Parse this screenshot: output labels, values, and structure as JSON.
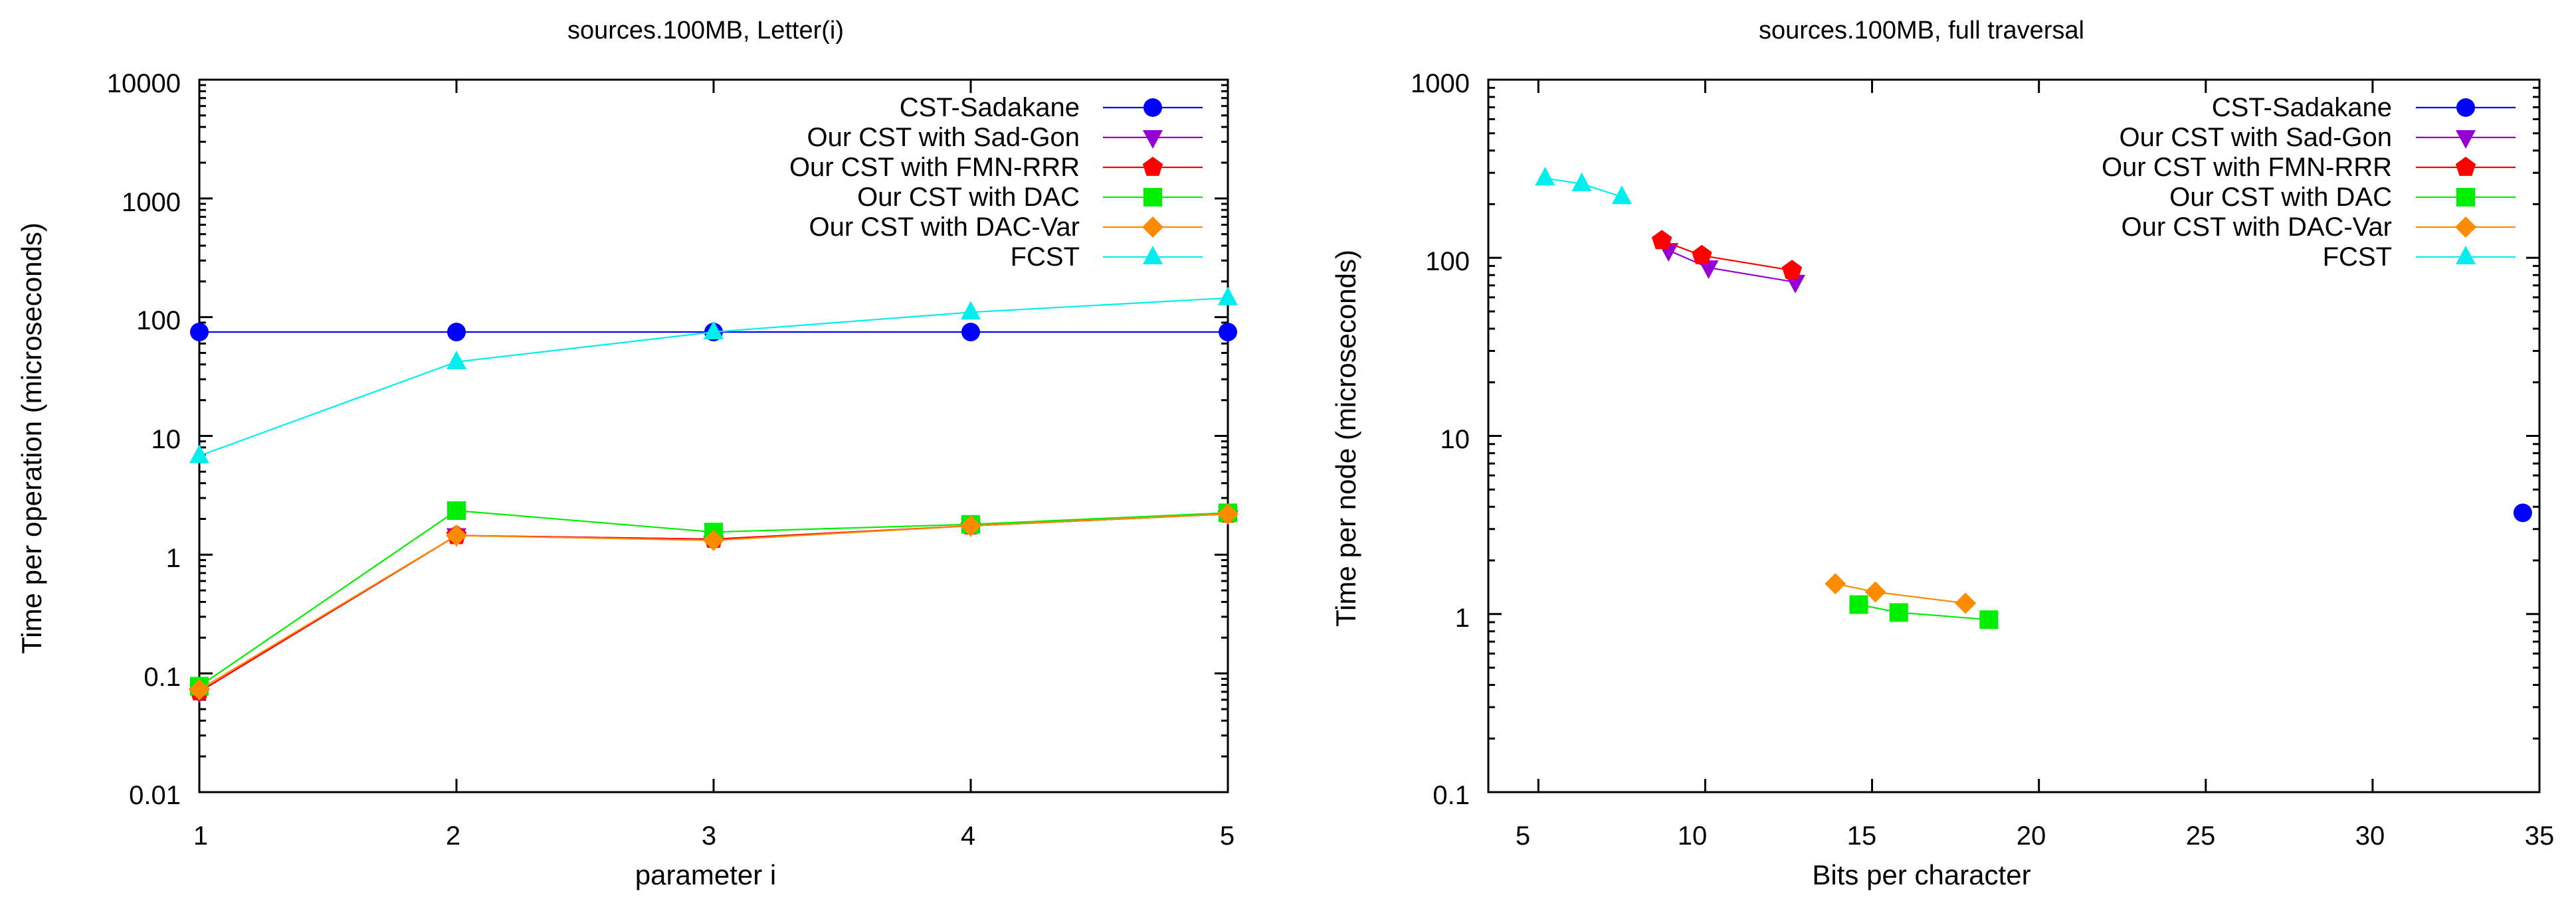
{
  "chart_data": [
    {
      "type": "line",
      "title": "sources.100MB, Letter(i)",
      "xlabel": "parameter i",
      "ylabel": "Time per operation (microseconds)",
      "xscale": "linear",
      "yscale": "log",
      "xlim": [
        1,
        5
      ],
      "ylim": [
        0.01,
        10000
      ],
      "xticks": [
        "1",
        "2",
        "3",
        "4",
        "5"
      ],
      "yticks": [
        "0.01",
        "0.1",
        "1",
        "10",
        "100",
        "1000",
        "10000"
      ],
      "legend_position": "top-right",
      "series": [
        {
          "name": "CST-Sadakane",
          "color": "#0000ff",
          "marker": "circle",
          "x": [
            1,
            2,
            3,
            4,
            5
          ],
          "y": [
            75,
            75,
            75,
            75,
            75
          ]
        },
        {
          "name": "Our CST with Sad-Gon",
          "color": "#9400d3",
          "marker": "triangle-down",
          "x": [
            1,
            2,
            3,
            4,
            5
          ],
          "y": [
            0.07,
            1.45,
            1.35,
            1.75,
            2.2
          ]
        },
        {
          "name": "Our CST with FMN-RRR",
          "color": "#ff0000",
          "marker": "pentagon",
          "x": [
            1,
            2,
            3,
            4,
            5
          ],
          "y": [
            0.07,
            1.45,
            1.35,
            1.75,
            2.2
          ]
        },
        {
          "name": "Our CST with DAC",
          "color": "#00ee00",
          "marker": "square",
          "x": [
            1,
            2,
            3,
            4,
            5
          ],
          "y": [
            0.078,
            2.35,
            1.55,
            1.8,
            2.25
          ]
        },
        {
          "name": "Our CST with DAC-Var",
          "color": "#ff8c00",
          "marker": "diamond",
          "x": [
            1,
            2,
            3,
            4,
            5
          ],
          "y": [
            0.073,
            1.45,
            1.32,
            1.75,
            2.2
          ]
        },
        {
          "name": "FCST",
          "color": "#00eeee",
          "marker": "triangle-up",
          "x": [
            1,
            2,
            3,
            4,
            5
          ],
          "y": [
            6.8,
            42,
            75,
            110,
            145
          ]
        }
      ]
    },
    {
      "type": "line",
      "title": "sources.100MB, full traversal",
      "xlabel": "Bits per character",
      "ylabel": "Time per node (microseconds)",
      "xscale": "linear",
      "yscale": "log",
      "xlim": [
        3.5,
        35
      ],
      "ylim": [
        0.1,
        1000
      ],
      "xticks": [
        "5",
        "10",
        "15",
        "20",
        "25",
        "30",
        "35"
      ],
      "xtick_values": [
        5,
        10,
        15,
        20,
        25,
        30,
        35
      ],
      "yticks": [
        "0.1",
        "1",
        "10",
        "100",
        "1000"
      ],
      "legend_position": "top-right",
      "series": [
        {
          "name": "CST-Sadakane",
          "color": "#0000ff",
          "marker": "circle",
          "x": [
            34.5
          ],
          "y": [
            3.7
          ]
        },
        {
          "name": "Our CST with Sad-Gon",
          "color": "#9400d3",
          "marker": "triangle-down",
          "x": [
            8.9,
            10.1,
            12.7
          ],
          "y": [
            110,
            88,
            73
          ]
        },
        {
          "name": "Our CST with FMN-RRR",
          "color": "#ff0000",
          "marker": "pentagon",
          "x": [
            8.7,
            9.9,
            12.6
          ],
          "y": [
            125,
            103,
            85
          ]
        },
        {
          "name": "Our CST with DAC",
          "color": "#00ee00",
          "marker": "square",
          "x": [
            14.6,
            15.8,
            18.5
          ],
          "y": [
            1.13,
            1.02,
            0.93
          ]
        },
        {
          "name": "Our CST with DAC-Var",
          "color": "#ff8c00",
          "marker": "diamond",
          "x": [
            13.9,
            15.1,
            17.8
          ],
          "y": [
            1.48,
            1.33,
            1.15
          ]
        },
        {
          "name": "FCST",
          "color": "#00eeee",
          "marker": "triangle-up",
          "x": [
            5.2,
            6.3,
            7.5
          ],
          "y": [
            280,
            260,
            220
          ]
        }
      ]
    }
  ]
}
